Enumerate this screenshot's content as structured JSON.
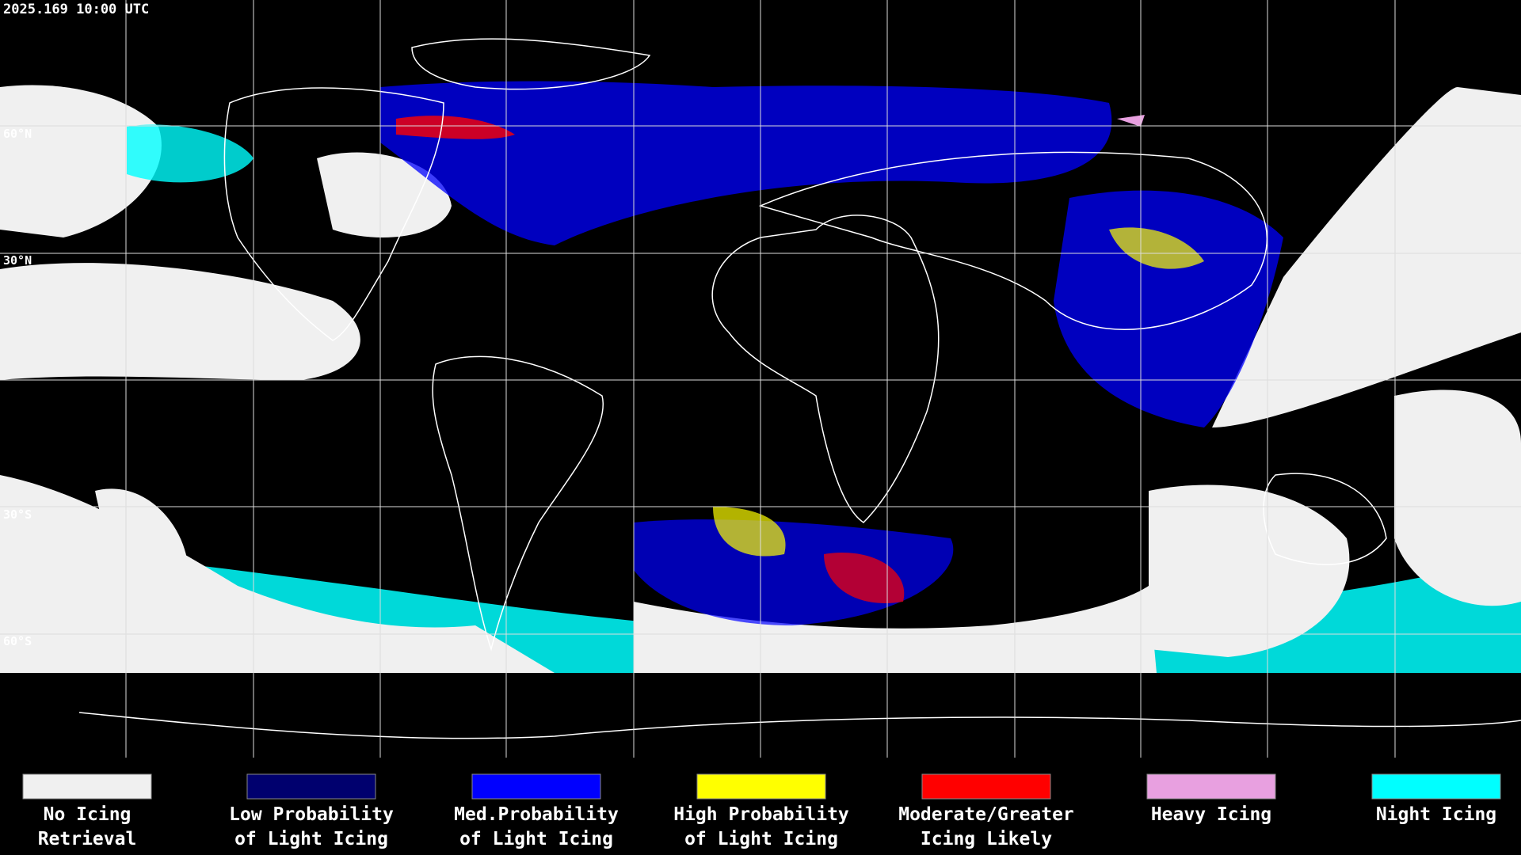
{
  "header": {
    "timestamp": "2025.169 10:00 UTC"
  },
  "map": {
    "latitude_labels": [
      "60°N",
      "30°N",
      "30°S",
      "60°S"
    ]
  },
  "legend": {
    "items": [
      {
        "lines": [
          "No Icing",
          "Retrieval"
        ],
        "color": "#f0f0f0"
      },
      {
        "lines": [
          "Low Probability",
          "of Light Icing"
        ],
        "color": "#00006e"
      },
      {
        "lines": [
          "Med.Probability",
          "of Light Icing"
        ],
        "color": "#0000ff"
      },
      {
        "lines": [
          "High Probability",
          "of Light Icing"
        ],
        "color": "#ffff00"
      },
      {
        "lines": [
          "Moderate/Greater",
          "Icing Likely"
        ],
        "color": "#ff0000"
      },
      {
        "lines": [
          "Heavy Icing"
        ],
        "color": "#e8a0e0"
      },
      {
        "lines": [
          "Night Icing"
        ],
        "color": "#00ffff"
      }
    ]
  }
}
